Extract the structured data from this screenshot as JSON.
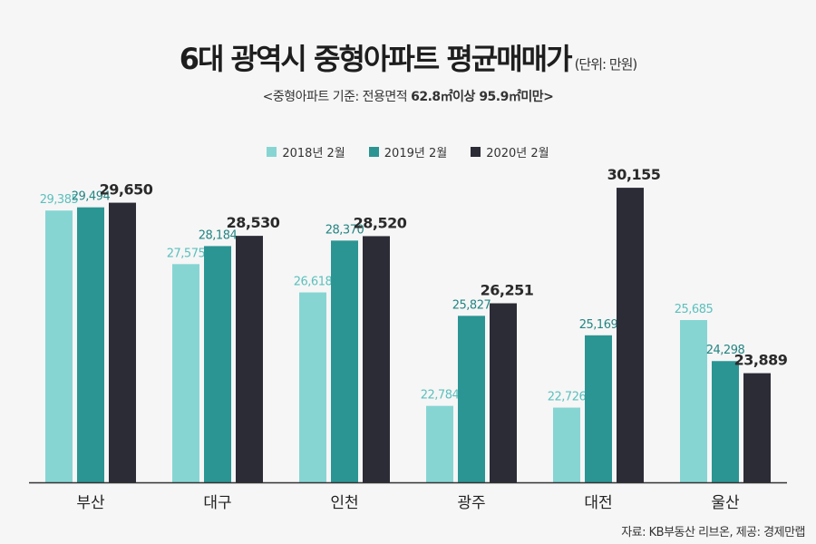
{
  "title": "6대 광역시 중형아파트 평균매매가",
  "unit": "(단위: 만원)",
  "subtitle_prefix": "<중형아파트 기준: 전용면적 ",
  "subtitle_bold1": "62.8㎡",
  "subtitle_mid": "이상 ",
  "subtitle_bold2": "95.9㎡",
  "subtitle_suffix": "미만>",
  "source": "자료: KB부동산 리브온, 제공: 경제만랩",
  "colors": {
    "s2018": "#86d5d3",
    "s2019": "#2b9593",
    "s2020": "#2c2c37",
    "label2018": "#5cc0bd",
    "label2019": "#238583"
  },
  "chart_data": {
    "type": "bar",
    "title": "6대 광역시 중형아파트 평균매매가",
    "xlabel": "",
    "ylabel": "만원",
    "ylim": [
      20200,
      36500
    ],
    "grid": false,
    "legend_position": "top-center",
    "categories": [
      "부산",
      "대구",
      "인천",
      "광주",
      "대전",
      "울산"
    ],
    "series": [
      {
        "name": "2018년 2월",
        "values": [
          29385,
          27575,
          26618,
          22784,
          22726,
          25685
        ]
      },
      {
        "name": "2019년 2월",
        "values": [
          29494,
          28184,
          28370,
          25827,
          25169,
          24298
        ]
      },
      {
        "name": "2020년 2월",
        "values": [
          29650,
          28530,
          28520,
          26251,
          30155,
          23889
        ]
      }
    ]
  }
}
